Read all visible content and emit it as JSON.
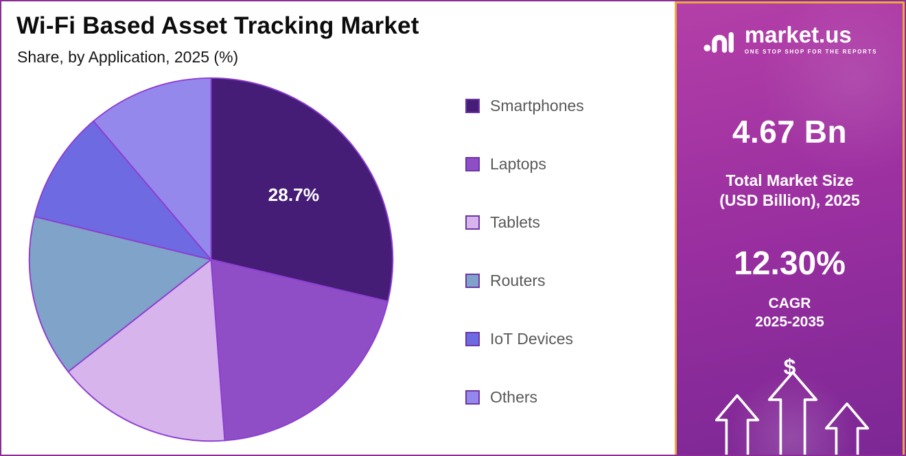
{
  "header": {
    "title": "Wi-Fi Based Asset Tracking Market",
    "subtitle": "Share, by Application, 2025 (%)"
  },
  "chart_data": {
    "type": "pie",
    "title": "Wi-Fi Based Asset Tracking Market",
    "subtitle": "Share, by Application, 2025 (%)",
    "categories": [
      "Smartphones",
      "Laptops",
      "Tablets",
      "Routers",
      "IoT Devices",
      "Others"
    ],
    "values": [
      28.7,
      20.1,
      15.6,
      14.4,
      10.0,
      11.2
    ],
    "colors": [
      "#451d76",
      "#8f4ec6",
      "#d7b4ec",
      "#7fa3c9",
      "#6e6ae2",
      "#9488ec"
    ],
    "slice_border_color": "#8d3fd1",
    "labeled_slice": {
      "category": "Smartphones",
      "label": "28.7%"
    },
    "start_angle_deg": 0,
    "direction": "clockwise",
    "legend_position": "right"
  },
  "side_panel": {
    "logo": {
      "brand": "market.us",
      "tagline": "ONE STOP SHOP FOR THE REPORTS"
    },
    "market_size_value": "4.67 Bn",
    "market_size_label_line1": "Total Market Size",
    "market_size_label_line2": "(USD Billion), 2025",
    "cagr_value": "12.30%",
    "cagr_label_line1": "CAGR",
    "cagr_label_line2": "2025-2035",
    "currency_symbol": "$",
    "colors": {
      "gradient_top": "#b43fa8",
      "gradient_mid": "#9a2fa0",
      "gradient_bottom": "#7c2795",
      "border": "#eda93f"
    }
  }
}
